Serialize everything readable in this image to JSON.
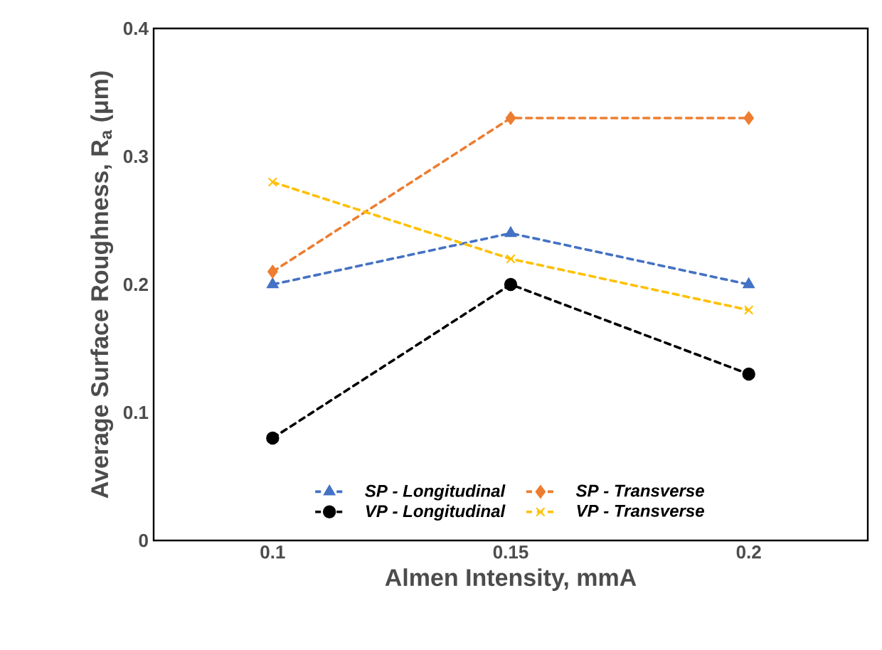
{
  "chart_data": {
    "type": "line",
    "xlabel": "Almen Intensity, mmA",
    "ylabel": "Average Surface Roughness, R$_{a}$ (μm)",
    "categories": [
      "0.1",
      "0.15",
      "0.2"
    ],
    "series": [
      {
        "name": "SP - Longitudinal",
        "color": "#4472c4",
        "marker": "triangle",
        "values": [
          0.2,
          0.24,
          0.2
        ]
      },
      {
        "name": "SP - Transverse",
        "color": "#ed7d31",
        "marker": "diamond",
        "values": [
          0.21,
          0.33,
          0.33
        ]
      },
      {
        "name": "VP - Longitudinal",
        "color": "#000000",
        "marker": "circle",
        "values": [
          0.08,
          0.2,
          0.13
        ]
      },
      {
        "name": "VP - Transverse",
        "color": "#ffc000",
        "marker": "cross",
        "values": [
          0.28,
          0.22,
          0.18
        ]
      }
    ],
    "ylim": [
      0,
      0.4
    ],
    "yticks": [
      0,
      0.1,
      0.2,
      0.3,
      0.4
    ],
    "line_style": "dashed",
    "legend": "bottom",
    "grid": false
  }
}
